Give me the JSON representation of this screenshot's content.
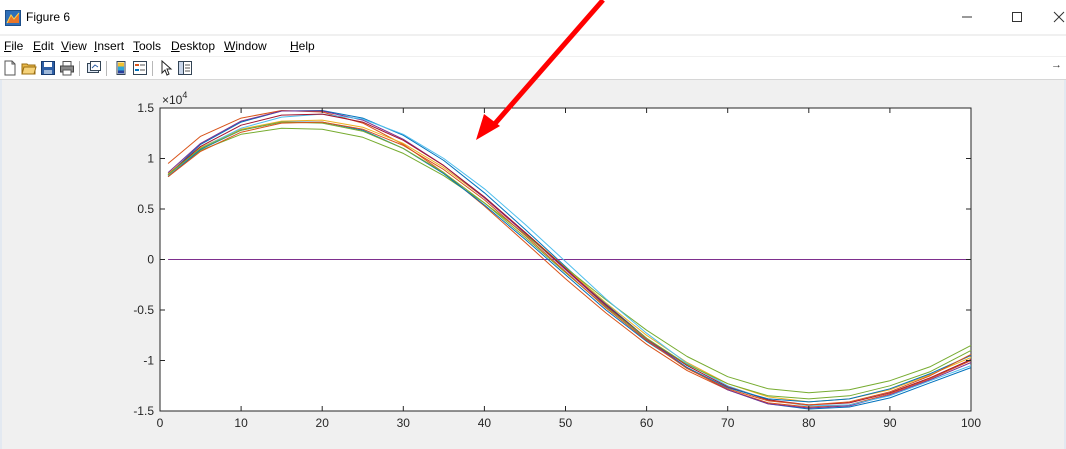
{
  "window": {
    "title": "Figure 6",
    "icon": "matlab-figure-icon",
    "controls": [
      "minimize-icon",
      "maximize-icon",
      "close-icon"
    ]
  },
  "menu": {
    "items": [
      {
        "label": "File",
        "accel": "F",
        "rest": "ile"
      },
      {
        "label": "Edit",
        "accel": "E",
        "rest": "dit"
      },
      {
        "label": "View",
        "accel": "V",
        "rest": "iew"
      },
      {
        "label": "Insert",
        "accel": "I",
        "rest": "nsert"
      },
      {
        "label": "Tools",
        "accel": "T",
        "rest": "ools"
      },
      {
        "label": "Desktop",
        "accel": "D",
        "rest": "esktop"
      },
      {
        "label": "Window",
        "accel": "W",
        "rest": "indow"
      },
      {
        "label": "Help",
        "accel": "H",
        "rest": "elp"
      }
    ]
  },
  "toolbar": {
    "icons": [
      "new-figure-icon",
      "open-file-icon",
      "save-icon",
      "print-icon",
      "link-plot-icon",
      "insert-colorbar-icon",
      "insert-legend-icon",
      "edit-plot-arrow-icon",
      "property-inspector-icon"
    ]
  },
  "colors": {
    "annotation_arrow": "#ff0000",
    "series": [
      "#0072bd",
      "#d95319",
      "#edb120",
      "#7e2f8e",
      "#77ac30",
      "#4dbeee",
      "#a2142f"
    ]
  },
  "chart_data": {
    "type": "line",
    "title": "",
    "xlabel": "",
    "ylabel": "",
    "y_exponent_label": "×10",
    "y_exponent_power": "4",
    "xlim": [
      0,
      100
    ],
    "ylim": [
      -15000,
      15000
    ],
    "xticks": [
      0,
      10,
      20,
      30,
      40,
      50,
      60,
      70,
      80,
      90,
      100
    ],
    "xtick_labels": [
      "0",
      "10",
      "20",
      "30",
      "40",
      "50",
      "60",
      "70",
      "80",
      "90",
      "100"
    ],
    "yticks": [
      -15000,
      -10000,
      -5000,
      0,
      5000,
      10000,
      15000
    ],
    "ytick_labels": [
      "-1.5",
      "-1",
      "-0.5",
      "0",
      "0.5",
      "1",
      "1.5"
    ],
    "grid": false,
    "legend": "none",
    "series": [
      {
        "color": "#0072bd",
        "x": [
          1,
          5,
          10,
          15,
          20,
          25,
          30,
          35,
          40,
          45,
          50,
          55,
          60,
          65,
          70,
          75,
          80,
          85,
          90,
          95,
          100
        ],
        "y": [
          8400,
          11400,
          13600,
          14700,
          14750,
          14000,
          12300,
          9800,
          6600,
          3000,
          -700,
          -4400,
          -7800,
          -10700,
          -12900,
          -14300,
          -14800,
          -14600,
          -13700,
          -12200,
          -10700
        ]
      },
      {
        "color": "#d95319",
        "x": [
          1,
          5,
          10,
          15,
          20,
          25,
          30,
          35,
          40,
          45,
          50,
          55,
          60,
          65,
          70,
          75,
          80,
          85,
          90,
          95,
          100
        ],
        "y": [
          9500,
          12200,
          14000,
          14750,
          14600,
          13500,
          11400,
          8600,
          5300,
          1700,
          -1900,
          -5300,
          -8400,
          -11000,
          -12900,
          -14200,
          -14600,
          -14400,
          -13300,
          -11800,
          -10000
        ]
      },
      {
        "color": "#edb120",
        "x": [
          1,
          5,
          10,
          15,
          20,
          25,
          30,
          35,
          40,
          45,
          50,
          55,
          60,
          65,
          70,
          75,
          80,
          85,
          90,
          95,
          100
        ],
        "y": [
          8500,
          11100,
          12900,
          13700,
          13800,
          13100,
          11500,
          9100,
          6100,
          2700,
          -800,
          -4300,
          -7500,
          -10200,
          -12300,
          -13600,
          -14100,
          -13800,
          -12900,
          -11400,
          -9700
        ]
      },
      {
        "color": "#7e2f8e",
        "x": [
          1,
          10,
          20,
          30,
          40,
          50,
          60,
          70,
          80,
          90,
          100
        ],
        "y": [
          0,
          0,
          0,
          0,
          0,
          0,
          0,
          0,
          0,
          0,
          0
        ]
      },
      {
        "color": "#7e2f8e",
        "x": [
          1,
          5,
          10,
          15,
          20,
          25,
          30,
          35,
          40,
          45,
          50,
          55,
          60,
          65,
          70,
          75,
          80,
          85,
          90,
          95,
          100
        ],
        "y": [
          8600,
          11500,
          13700,
          14700,
          14700,
          13800,
          11900,
          9300,
          6100,
          2600,
          -1000,
          -4600,
          -7900,
          -10700,
          -12900,
          -14300,
          -14700,
          -14500,
          -13400,
          -11900,
          -10200
        ]
      },
      {
        "color": "#77ac30",
        "x": [
          1,
          5,
          10,
          15,
          20,
          25,
          30,
          35,
          40,
          45,
          50,
          55,
          60,
          65,
          70,
          75,
          80,
          85,
          90,
          95,
          100
        ],
        "y": [
          8300,
          10800,
          12400,
          13000,
          12900,
          12100,
          10500,
          8300,
          5600,
          2500,
          -800,
          -4000,
          -7000,
          -9600,
          -11600,
          -12800,
          -13200,
          -12900,
          -12000,
          -10600,
          -8500
        ]
      },
      {
        "color": "#4dbeee",
        "x": [
          1,
          5,
          10,
          15,
          20,
          25,
          30,
          35,
          40,
          45,
          50,
          55,
          60,
          65,
          70,
          75,
          80,
          85,
          90,
          95,
          100
        ],
        "y": [
          8300,
          11000,
          13000,
          14100,
          14400,
          13900,
          12400,
          10000,
          7000,
          3500,
          -200,
          -3900,
          -7300,
          -10300,
          -12500,
          -13900,
          -14500,
          -14400,
          -13500,
          -12000,
          -10500
        ]
      },
      {
        "color": "#a2142f",
        "x": [
          1,
          5,
          10,
          15,
          20,
          25,
          30,
          35,
          40,
          45,
          50,
          55,
          60,
          65,
          70,
          75,
          80,
          85,
          90,
          95,
          100
        ],
        "y": [
          8400,
          11200,
          13300,
          14300,
          14400,
          13600,
          11800,
          9300,
          6200,
          2700,
          -900,
          -4500,
          -7800,
          -10500,
          -12600,
          -13900,
          -14400,
          -14200,
          -13200,
          -11700,
          -9900
        ]
      },
      {
        "color": "#0072bd",
        "x": [
          1,
          5,
          10,
          15,
          20,
          25,
          30,
          35,
          40,
          45,
          50,
          55,
          60,
          65,
          70,
          75,
          80,
          85,
          90,
          95,
          100
        ],
        "y": [
          8200,
          10900,
          12800,
          13600,
          13600,
          12800,
          11000,
          8500,
          5400,
          2000,
          -1500,
          -5000,
          -8100,
          -10700,
          -12700,
          -13800,
          -14100,
          -13800,
          -12800,
          -11300,
          -9500
        ]
      },
      {
        "color": "#77ac30",
        "x": [
          1,
          5,
          10,
          15,
          20,
          25,
          30,
          35,
          40,
          45,
          50,
          55,
          60,
          65,
          70,
          75,
          80,
          85,
          90,
          95,
          100
        ],
        "y": [
          8400,
          11000,
          12800,
          13600,
          13500,
          12700,
          11000,
          8600,
          5600,
          2200,
          -1300,
          -4700,
          -7800,
          -10400,
          -12300,
          -13500,
          -13800,
          -13500,
          -12500,
          -11100,
          -9000
        ]
      },
      {
        "color": "#d95319",
        "x": [
          1,
          5,
          10,
          15,
          20,
          25,
          30,
          35,
          40,
          45,
          50,
          55,
          60,
          65,
          70,
          75,
          80,
          85,
          90,
          95,
          100
        ],
        "y": [
          8200,
          10700,
          12600,
          13500,
          13600,
          12900,
          11300,
          8900,
          5900,
          2400,
          -1200,
          -4800,
          -8000,
          -10800,
          -12800,
          -14000,
          -14400,
          -14100,
          -13100,
          -11500,
          -9400
        ]
      }
    ]
  }
}
